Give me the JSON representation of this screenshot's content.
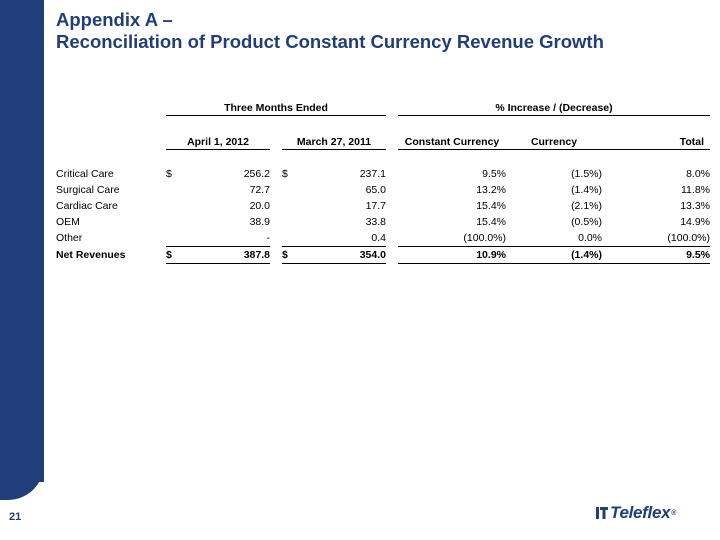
{
  "title": {
    "line1": "Appendix A –",
    "line2": "Reconciliation of Product Constant Currency Revenue Growth"
  },
  "page_number": "21",
  "logo": {
    "text": "Teleflex",
    "reg": "®"
  },
  "table": {
    "group_headers": {
      "three_months": "Three Months Ended",
      "pct_change": "% Increase / (Decrease)"
    },
    "column_headers": {
      "april": "April 1, 2012",
      "march": "March 27, 2011",
      "constant_currency": "Constant Currency",
      "currency": "Currency",
      "total": "Total"
    },
    "rows": [
      {
        "label": "Critical Care",
        "cur1": "$",
        "v2012": "256.2",
        "cur2": "$",
        "v2011": "237.1",
        "cc": "9.5%",
        "fx": "(1.5%)",
        "total": "8.0%"
      },
      {
        "label": "Surgical Care",
        "cur1": "",
        "v2012": "72.7",
        "cur2": "",
        "v2011": "65.0",
        "cc": "13.2%",
        "fx": "(1.4%)",
        "total": "11.8%"
      },
      {
        "label": "Cardiac Care",
        "cur1": "",
        "v2012": "20.0",
        "cur2": "",
        "v2011": "17.7",
        "cc": "15.4%",
        "fx": "(2.1%)",
        "total": "13.3%"
      },
      {
        "label": "OEM",
        "cur1": "",
        "v2012": "38.9",
        "cur2": "",
        "v2011": "33.8",
        "cc": "15.4%",
        "fx": "(0.5%)",
        "total": "14.9%"
      },
      {
        "label": "Other",
        "cur1": "",
        "v2012": "-",
        "cur2": "",
        "v2011": "0.4",
        "cc": "(100.0%)",
        "fx": "0.0%",
        "total": "(100.0%)"
      }
    ],
    "total_row": {
      "label": "Net Revenues",
      "cur1": "$",
      "v2012": "387.8",
      "cur2": "$",
      "v2011": "354.0",
      "cc": "10.9%",
      "fx": "(1.4%)",
      "total": "9.5%"
    }
  }
}
